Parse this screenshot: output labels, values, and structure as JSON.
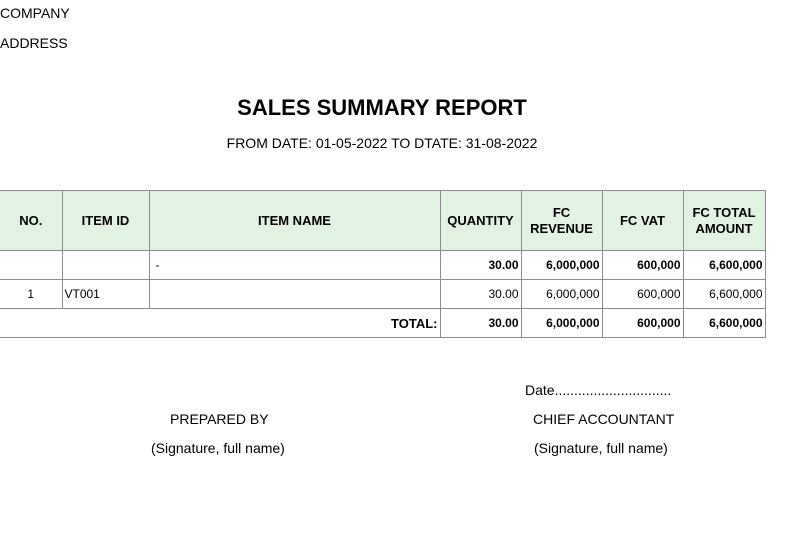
{
  "header": {
    "company": "COMPANY",
    "address": "ADDRESS",
    "title": "SALES SUMMARY REPORT",
    "subtitle": "FROM DATE: 01-05-2022 TO DTATE: 31-08-2022"
  },
  "table": {
    "columns": {
      "no": "NO.",
      "item_id": "ITEM ID",
      "item_name": "ITEM NAME",
      "quantity": "QUANTITY",
      "fc_revenue": "FC REVENUE",
      "fc_vat": "FC VAT",
      "fc_total": "FC TOTAL AMOUNT"
    },
    "group_row": {
      "no": "",
      "item_id": "",
      "item_name": "-",
      "quantity": "30.00",
      "fc_revenue": "6,000,000",
      "fc_vat": "600,000",
      "fc_total": "6,600,000"
    },
    "rows": [
      {
        "no": "1",
        "item_id": "VT001",
        "item_name": "",
        "quantity": "30.00",
        "fc_revenue": "6,000,000",
        "fc_vat": "600,000",
        "fc_total": "6,600,000"
      }
    ],
    "total": {
      "label": "TOTAL:",
      "quantity": "30.00",
      "fc_revenue": "6,000,000",
      "fc_vat": "600,000",
      "fc_total": "6,600,000"
    }
  },
  "signatures": {
    "date_line": "Date..............................",
    "prepared_by": "PREPARED BY",
    "prepared_sig": "(Signature, full name)",
    "chief_accountant": "CHIEF ACCOUNTANT",
    "chief_sig": "(Signature, full name)"
  }
}
